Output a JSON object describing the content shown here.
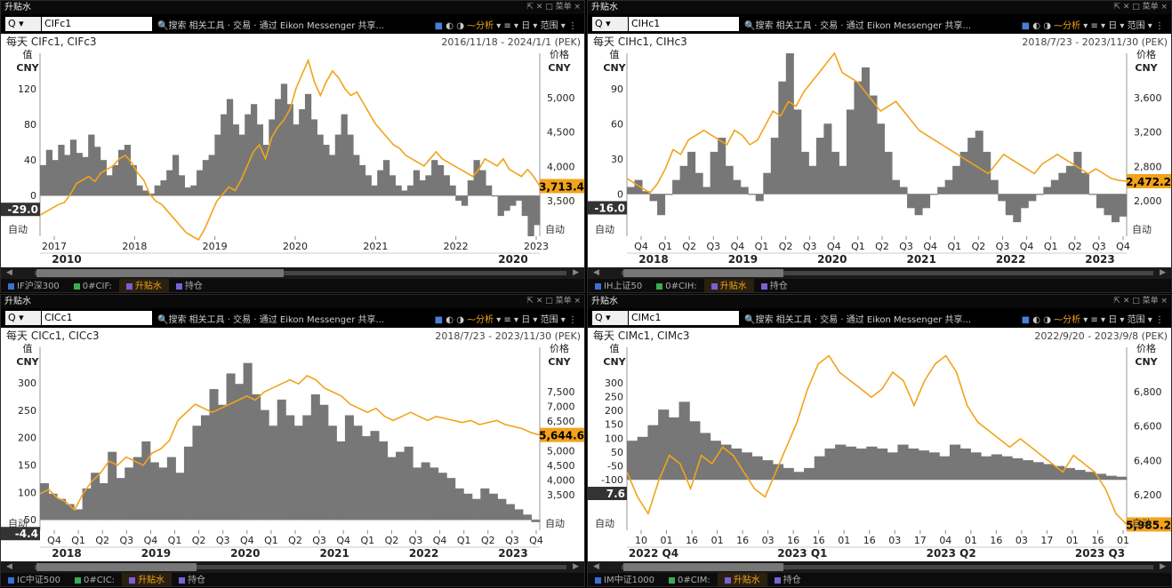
{
  "panels": [
    {
      "title": "升贴水",
      "window_controls": "⇱ ✕ □ 菜单 ×",
      "ric": "CIFc1",
      "menu": "🔍搜索  相关工具 · 交易 · 通过 Eikon Messenger 共享...",
      "header_left": "每天 CIFc1, CIFc3",
      "date_range": "2016/11/18 - 2024/1/1 (PEK)",
      "left_axis_title": "值",
      "left_axis_unit": "CNY",
      "right_axis_title": "价格",
      "right_axis_unit": "CNY",
      "left_ticks": [
        "120",
        "80",
        "40",
        "0"
      ],
      "right_ticks": [
        "5,000",
        "4,500",
        "4,000",
        "3,500"
      ],
      "last_spread": "-29.0",
      "last_price": "3,713.4",
      "auto_label": "自动",
      "x_labels": [
        "2017",
        "2018",
        "2019",
        "2020",
        "2021",
        "2022",
        "2023"
      ],
      "x_group_labels": [
        "2010",
        "2020"
      ],
      "tabs": [
        "IF沪深300",
        "0#CIF:",
        "升贴水",
        "持仓"
      ]
    },
    {
      "title": "升贴水",
      "window_controls": "⇱ ✕ □ 菜单 ×",
      "ric": "CIHc1",
      "menu": "🔍搜索  相关工具 · 交易 · 通过 Eikon Messenger 共享...",
      "header_left": "每天 CIHc1, CIHc3",
      "date_range": "2018/7/23 - 2023/11/30 (PEK)",
      "left_axis_title": "值",
      "left_axis_unit": "CNY",
      "right_axis_title": "价格",
      "right_axis_unit": "CNY",
      "left_ticks": [
        "90",
        "60",
        "30",
        "0"
      ],
      "right_ticks": [
        "3,600",
        "3,200",
        "2,800",
        "2,000"
      ],
      "last_spread": "-16.0",
      "last_price": "2,472.2",
      "auto_label": "自动",
      "x_labels": [
        "Q4",
        "Q1",
        "Q2",
        "Q3",
        "Q4",
        "Q1",
        "Q2",
        "Q3",
        "Q4",
        "Q1",
        "Q2",
        "Q3",
        "Q4",
        "Q1",
        "Q2",
        "Q3",
        "Q4",
        "Q1",
        "Q2",
        "Q3",
        "Q4"
      ],
      "x_group_labels": [
        "2018",
        "2019",
        "2020",
        "2021",
        "2022",
        "2023"
      ],
      "tabs": [
        "IH上证50",
        "0#CIH:",
        "升贴水",
        "持仓"
      ]
    },
    {
      "title": "升贴水",
      "window_controls": "⇱ ✕ □ 菜单 ×",
      "ric": "CICc1",
      "menu": "🔍搜索  相关工具 · 交易 · 通过 Eikon Messenger 共享...",
      "header_left": "每天 CICc1, CICc3",
      "date_range": "2018/7/23 - 2023/11/30 (PEK)",
      "left_axis_title": "值",
      "left_axis_unit": "CNY",
      "right_axis_title": "价格",
      "right_axis_unit": "CNY",
      "left_ticks": [
        "300",
        "250",
        "200",
        "150",
        "100",
        "50"
      ],
      "right_ticks": [
        "7,500",
        "7,000",
        "6,500",
        "6,000",
        "5,000",
        "4,500",
        "4,000",
        "3,500"
      ],
      "last_spread": "-4.4",
      "last_price": "5,644.6",
      "auto_label": "自动",
      "x_labels": [
        "Q4",
        "Q1",
        "Q2",
        "Q3",
        "Q4",
        "Q1",
        "Q2",
        "Q3",
        "Q4",
        "Q1",
        "Q2",
        "Q3",
        "Q4",
        "Q1",
        "Q2",
        "Q3",
        "Q4",
        "Q1",
        "Q2",
        "Q3",
        "Q4"
      ],
      "x_group_labels": [
        "2018",
        "2019",
        "2020",
        "2021",
        "2022",
        "2023"
      ],
      "tabs": [
        "IC中证500",
        "0#CIC:",
        "升贴水",
        "持仓"
      ]
    },
    {
      "title": "升贴水",
      "window_controls": "⇱ ✕ □ 菜单 ×",
      "ric": "CIMc1",
      "menu": "🔍搜索  相关工具 · 交易 · 通过 Eikon Messenger 共享...",
      "header_left": "每天 CIMc1, CIMc3",
      "date_range": "2022/9/20 - 2023/9/8 (PEK)",
      "left_axis_title": "值",
      "left_axis_unit": "CNY",
      "right_axis_title": "价格",
      "right_axis_unit": "CNY",
      "left_ticks": [
        "300",
        "250",
        "200",
        "150",
        "100",
        "50",
        "-50",
        "-100"
      ],
      "right_ticks": [
        "6,800",
        "6,600",
        "6,400",
        "6,200"
      ],
      "last_spread": "7.6",
      "last_price": "5,985.2",
      "auto_label": "自动",
      "x_labels": [
        "10",
        "01",
        "16",
        "01",
        "16",
        "03",
        "16",
        "16",
        "01",
        "16",
        "03",
        "17",
        "04",
        "01",
        "16",
        "03",
        "17",
        "01",
        "16",
        "01"
      ],
      "x_group_labels": [
        "2022 Q4",
        "2023 Q1",
        "2023 Q2",
        "2023 Q3"
      ],
      "tabs": [
        "IM中证1000",
        "0#CIM:",
        "升贴水",
        "持仓"
      ]
    }
  ],
  "colors": {
    "price_line": "#f2a31b",
    "spread_area": "#777777",
    "tab_active": "#f2a31b",
    "tab_square": "#7a5fd6"
  },
  "chart_data": [
    {
      "type": "area",
      "title": "每天 CIFc1, CIFc3",
      "series": [
        {
          "name": "CIFc1",
          "axis": "left",
          "values": [
            30,
            45,
            35,
            50,
            40,
            55,
            42,
            38,
            60,
            48,
            35,
            20,
            30,
            45,
            50,
            30,
            10,
            5,
            2,
            10,
            15,
            25,
            40,
            20,
            8,
            10,
            25,
            35,
            40,
            60,
            80,
            95,
            70,
            60,
            80,
            90,
            70,
            50,
            75,
            95,
            110,
            90,
            70,
            85,
            100,
            75,
            60,
            50,
            40,
            60,
            80,
            60,
            40,
            30,
            20,
            10,
            25,
            35,
            20,
            10,
            5,
            10,
            25,
            15,
            20,
            35,
            30,
            20,
            10,
            -5,
            -10,
            15,
            35,
            25,
            10,
            0,
            -20,
            -15,
            -10,
            -5,
            -20,
            -40,
            -29
          ]
        },
        {
          "name": "CIFc3",
          "axis": "right",
          "values": [
            3300,
            3350,
            3400,
            3450,
            3480,
            3600,
            3750,
            3800,
            3850,
            3780,
            3900,
            3950,
            4000,
            4100,
            4150,
            4050,
            3900,
            3800,
            3600,
            3500,
            3450,
            3350,
            3250,
            3150,
            3050,
            3000,
            2950,
            3100,
            3300,
            3500,
            3600,
            3700,
            3650,
            3800,
            4000,
            4200,
            4300,
            4100,
            4400,
            4550,
            4650,
            4800,
            5100,
            5300,
            5500,
            5200,
            5000,
            5200,
            5350,
            5250,
            5100,
            5000,
            5050,
            4900,
            4750,
            4600,
            4500,
            4400,
            4300,
            4250,
            4150,
            4100,
            4050,
            4000,
            4100,
            4200,
            4100,
            4050,
            4000,
            3950,
            3900,
            3850,
            3950,
            4100,
            4050,
            4000,
            4100,
            3950,
            3900,
            3850,
            3950,
            3850,
            3713.4
          ]
        }
      ],
      "ylim_left": [
        -40,
        140
      ],
      "ylim_right": [
        3000,
        5600
      ]
    },
    {
      "type": "area",
      "title": "每天 CIHc1, CIHc3",
      "series": [
        {
          "name": "CIHc1",
          "axis": "left",
          "values": [
            5,
            10,
            2,
            -5,
            -15,
            0,
            10,
            20,
            30,
            15,
            5,
            30,
            40,
            20,
            10,
            5,
            0,
            -5,
            15,
            40,
            80,
            100,
            60,
            30,
            20,
            40,
            50,
            30,
            20,
            60,
            80,
            90,
            70,
            50,
            30,
            10,
            5,
            -10,
            -15,
            -10,
            0,
            5,
            10,
            20,
            30,
            40,
            45,
            30,
            10,
            -5,
            -15,
            -20,
            -10,
            -5,
            0,
            5,
            10,
            15,
            20,
            30,
            15,
            0,
            -10,
            -15,
            -20,
            -16
          ]
        },
        {
          "name": "CIHc3",
          "axis": "right",
          "values": [
            2500,
            2450,
            2400,
            2350,
            2450,
            2600,
            2800,
            2750,
            2900,
            2950,
            3000,
            2950,
            2900,
            2850,
            3000,
            2950,
            2850,
            2900,
            3050,
            3200,
            3150,
            3300,
            3250,
            3400,
            3500,
            3600,
            3700,
            3800,
            3600,
            3550,
            3500,
            3400,
            3300,
            3200,
            3250,
            3300,
            3200,
            3100,
            3000,
            2950,
            2900,
            2850,
            2800,
            2750,
            2700,
            2650,
            2600,
            2550,
            2650,
            2750,
            2700,
            2650,
            2600,
            2550,
            2650,
            2700,
            2750,
            2700,
            2650,
            2600,
            2550,
            2600,
            2550,
            2500,
            2480,
            2472.2
          ]
        }
      ],
      "ylim_left": [
        -30,
        100
      ],
      "ylim_right": [
        1900,
        3800
      ]
    },
    {
      "type": "area",
      "title": "每天 CICc1, CICc3",
      "series": [
        {
          "name": "CICc1",
          "axis": "left",
          "values": [
            70,
            50,
            40,
            30,
            20,
            60,
            90,
            70,
            130,
            80,
            100,
            120,
            150,
            110,
            100,
            120,
            90,
            140,
            180,
            200,
            250,
            220,
            280,
            260,
            300,
            240,
            210,
            180,
            230,
            200,
            180,
            200,
            240,
            220,
            180,
            150,
            200,
            180,
            160,
            170,
            150,
            120,
            130,
            140,
            100,
            110,
            100,
            90,
            80,
            60,
            50,
            40,
            60,
            50,
            40,
            30,
            20,
            10,
            -4.4
          ]
        },
        {
          "name": "CICc3",
          "axis": "right",
          "values": [
            4200,
            4300,
            4100,
            4000,
            3800,
            4200,
            4500,
            4700,
            5000,
            4900,
            5100,
            5000,
            4900,
            5200,
            5300,
            5500,
            6000,
            6200,
            6400,
            6300,
            6200,
            6300,
            6400,
            6500,
            6600,
            6500,
            6700,
            6800,
            6900,
            7000,
            6900,
            7100,
            7000,
            6800,
            6700,
            6600,
            6400,
            6300,
            6200,
            6300,
            6100,
            6000,
            6100,
            6200,
            6100,
            6000,
            6100,
            6050,
            6000,
            5950,
            6000,
            5900,
            5950,
            6000,
            5900,
            5850,
            5800,
            5700,
            5644.6
          ]
        }
      ],
      "ylim_left": [
        -20,
        330
      ],
      "ylim_right": [
        3300,
        7800
      ]
    },
    {
      "type": "area",
      "title": "每天 CIMc1, CIMc3",
      "series": [
        {
          "name": "CIMc1",
          "axis": "left",
          "values": [
            100,
            110,
            140,
            180,
            160,
            200,
            150,
            120,
            100,
            90,
            80,
            70,
            60,
            50,
            40,
            30,
            20,
            30,
            60,
            80,
            90,
            85,
            80,
            85,
            80,
            70,
            90,
            80,
            75,
            70,
            60,
            90,
            80,
            70,
            60,
            65,
            60,
            55,
            50,
            45,
            40,
            35,
            30,
            25,
            20,
            15,
            10,
            7.6
          ]
        },
        {
          "name": "CIMc3",
          "axis": "right",
          "values": [
            6300,
            6150,
            6050,
            6250,
            6400,
            6350,
            6200,
            6400,
            6350,
            6450,
            6400,
            6300,
            6200,
            6150,
            6300,
            6450,
            6600,
            6800,
            6950,
            7000,
            6900,
            6850,
            6800,
            6750,
            6800,
            6900,
            6850,
            6700,
            6850,
            6950,
            7000,
            6900,
            6700,
            6600,
            6550,
            6500,
            6450,
            6500,
            6450,
            6400,
            6350,
            6300,
            6400,
            6350,
            6300,
            6200,
            6050,
            5985.2
          ]
        }
      ],
      "ylim_left": [
        -130,
        340
      ],
      "ylim_right": [
        5950,
        7050
      ]
    }
  ]
}
